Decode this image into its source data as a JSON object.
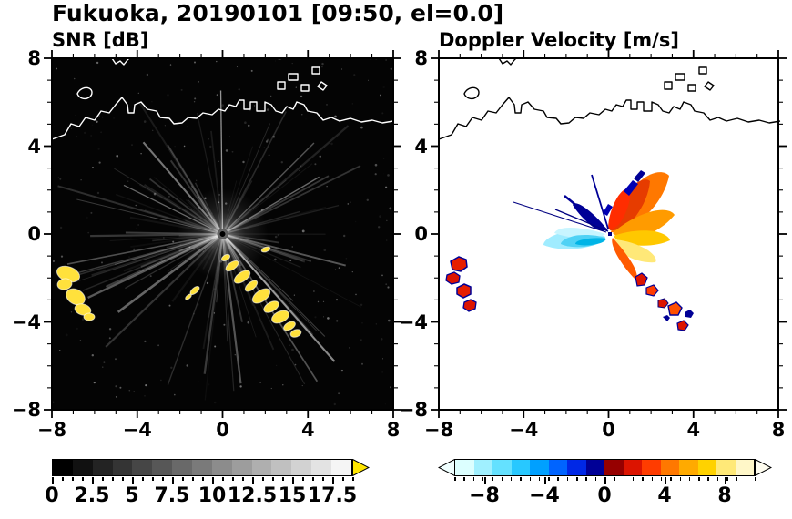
{
  "header": {
    "title": "Fukuoka, 20190101 [09:50, el=0.0]"
  },
  "panels": [
    {
      "title": "SNR [dB]",
      "axis": {
        "x_tick_values": [
          -8,
          -4,
          0,
          4,
          8
        ],
        "x_tick_labels": [
          "−8",
          "−4",
          "0",
          "4",
          "8"
        ],
        "y_tick_values": [
          -8,
          -4,
          0,
          4,
          8
        ],
        "y_tick_labels": [
          "−8",
          "−4",
          "0",
          "4",
          "8"
        ]
      },
      "colorbar": {
        "range": [
          0,
          18.75
        ],
        "tick_values": [
          0,
          2.5,
          5,
          7.5,
          10,
          12.5,
          15,
          17.5
        ],
        "tick_labels": [
          "0",
          "2.5",
          "5",
          "7.5",
          "10",
          "12.5",
          "15",
          "17.5"
        ],
        "colors": [
          "#000000",
          "#111111",
          "#232323",
          "#343434",
          "#464646",
          "#575757",
          "#696969",
          "#7a7a7a",
          "#8c8c8c",
          "#9d9d9d",
          "#afafaf",
          "#c0c0c0",
          "#d2d2d2",
          "#e3e3e3",
          "#f5f5f5"
        ],
        "over_arrow_color": "#ffe600"
      }
    },
    {
      "title": "Doppler Velocity [m/s]",
      "axis": {
        "x_tick_values": [
          -8,
          -4,
          0,
          4,
          8
        ],
        "x_tick_labels": [
          "−8",
          "−4",
          "0",
          "4",
          "8"
        ],
        "y_tick_values": [
          -8,
          -4,
          0,
          4,
          8
        ],
        "y_tick_labels": [
          "−8",
          "−4",
          "0",
          "4",
          "8"
        ]
      },
      "colorbar": {
        "range": [
          -10,
          10
        ],
        "tick_values": [
          -8,
          -4,
          0,
          4,
          8
        ],
        "tick_labels": [
          "−8",
          "−4",
          "0",
          "4",
          "8"
        ],
        "colors": [
          "#dcffff",
          "#a0f0ff",
          "#64e1ff",
          "#28c8ff",
          "#00a0ff",
          "#0064ff",
          "#0028e6",
          "#000096",
          "#960000",
          "#dc1400",
          "#ff3c00",
          "#ff7800",
          "#ffaa00",
          "#ffd200",
          "#ffe978",
          "#fff7c8"
        ],
        "under_arrow_color": "#f0ffff",
        "over_arrow_color": "#fffdf0"
      }
    }
  ],
  "chart_data": [
    {
      "type": "heatmap",
      "title": "SNR [dB]",
      "suptitle": "Fukuoka, 20190101 [09:50, el=0.0]",
      "xlabel": "",
      "ylabel": "",
      "xlim": [
        -8,
        8
      ],
      "ylim": [
        -8,
        8
      ],
      "x_ticks": [
        -8,
        -4,
        0,
        4,
        8
      ],
      "y_ticks": [
        -8,
        -4,
        0,
        4,
        8
      ],
      "colorbar": {
        "range": [
          0,
          18.75
        ],
        "ticks": [
          0,
          2.5,
          5,
          7.5,
          10,
          12.5,
          15,
          17.5
        ],
        "colormap": "black-to-white grayscale, yellow over-range arrow"
      },
      "features": [
        {
          "name": "radar-site",
          "x": 0,
          "y": 0
        },
        {
          "name": "radial-noise-streaks",
          "desc": "faint gray streaks radiating from radar site in all directions on black background"
        },
        {
          "name": "strong-echo-arc",
          "desc": "yellow high-SNR (>17.5 dB) broken arc from about (0.2,-1.2) to (3.4,-4.5)"
        },
        {
          "name": "strong-echo-cluster-southwest",
          "desc": "yellow high-SNR blobs near (-7.2,-1.9) to (-6.3,-3.7)"
        },
        {
          "name": "coastline",
          "desc": "white coastline outline across top of panel between y=4.5 and y=7, with islands and harbor piers"
        }
      ]
    },
    {
      "type": "heatmap",
      "title": "Doppler Velocity [m/s]",
      "xlabel": "",
      "ylabel": "",
      "xlim": [
        -8,
        8
      ],
      "ylim": [
        -8,
        8
      ],
      "x_ticks": [
        -8,
        -4,
        0,
        4,
        8
      ],
      "y_ticks": [
        -8,
        -4,
        0,
        4,
        8
      ],
      "colorbar": {
        "range": [
          -10,
          10
        ],
        "ticks": [
          -8,
          -4,
          0,
          4,
          8
        ],
        "colormap": "diverging cyan-blue-navy / darkred-red-orange-yellow with arrow ends"
      },
      "features": [
        {
          "name": "warm-fan-northeast",
          "desc": "red/orange echoes (+2 to +8 m/s) fanning north-east of radar up to (2.7,2.8)"
        },
        {
          "name": "warm-fan-east",
          "desc": "orange-to-pale-yellow echoes east and southeast of radar"
        },
        {
          "name": "cool-fan-west",
          "desc": "cyan/light-blue echoes (-2 to -6 m/s) west-southwest of radar to about (-3,-0.5)"
        },
        {
          "name": "navy-streaks-northwest",
          "desc": "narrow dark-blue streaks radiating northwest of radar"
        },
        {
          "name": "scattered-echo-southeast",
          "desc": "small red/navy patches along arc from (1.3,-2) to (3.6,-4.4)"
        },
        {
          "name": "scattered-echo-southwest",
          "desc": "small red/navy patches near (-7.3,-1.3) to (-6.6,-3.4)"
        },
        {
          "name": "coastline",
          "desc": "black coastline outline across top of panel"
        }
      ]
    }
  ]
}
